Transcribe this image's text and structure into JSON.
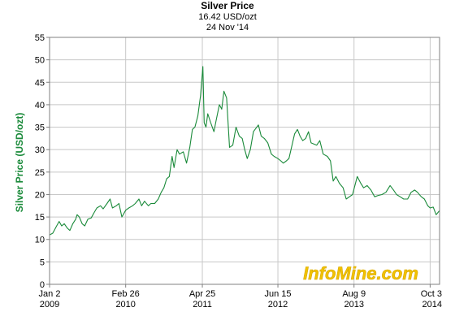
{
  "chart_data": {
    "type": "line",
    "title": "Silver Price",
    "subtitle": "16.42 USD/ozt",
    "date_label": "24 Nov '14",
    "xlabel": "",
    "ylabel": "Silver Price (USD/ozt)",
    "ylim": [
      0,
      55
    ],
    "yticks": [
      0,
      5,
      10,
      15,
      20,
      25,
      30,
      35,
      40,
      45,
      50,
      55
    ],
    "xlim": [
      "2009-01-02",
      "2014-11-24"
    ],
    "xticks": [
      {
        "date": "2009-01-02",
        "line1": "Jan 2",
        "line2": "2009"
      },
      {
        "date": "2010-02-26",
        "line1": "Feb 26",
        "line2": "2010"
      },
      {
        "date": "2011-04-25",
        "line1": "Apr 25",
        "line2": "2011"
      },
      {
        "date": "2012-06-15",
        "line1": "Jun 15",
        "line2": "2012"
      },
      {
        "date": "2013-08-09",
        "line1": "Aug 9",
        "line2": "2013"
      },
      {
        "date": "2014-10-03",
        "line1": "Oct 3",
        "line2": "2014"
      }
    ],
    "grid": true,
    "line_color": "#1a8a3a",
    "watermark": "InfoMine.com",
    "series": [
      {
        "name": "",
        "points": [
          [
            "2009-01-02",
            11.0
          ],
          [
            "2009-01-20",
            11.4
          ],
          [
            "2009-02-10",
            13.0
          ],
          [
            "2009-02-24",
            14.0
          ],
          [
            "2009-03-10",
            13.0
          ],
          [
            "2009-03-24",
            13.5
          ],
          [
            "2009-04-10",
            12.5
          ],
          [
            "2009-04-24",
            12.0
          ],
          [
            "2009-05-10",
            13.5
          ],
          [
            "2009-05-26",
            14.5
          ],
          [
            "2009-06-03",
            15.5
          ],
          [
            "2009-06-15",
            15.0
          ],
          [
            "2009-07-01",
            13.5
          ],
          [
            "2009-07-15",
            13.0
          ],
          [
            "2009-08-01",
            14.5
          ],
          [
            "2009-08-20",
            14.8
          ],
          [
            "2009-09-05",
            16.0
          ],
          [
            "2009-09-20",
            17.0
          ],
          [
            "2009-10-10",
            17.5
          ],
          [
            "2009-10-25",
            16.8
          ],
          [
            "2009-11-15",
            18.0
          ],
          [
            "2009-12-02",
            19.0
          ],
          [
            "2009-12-15",
            17.0
          ],
          [
            "2010-01-05",
            17.5
          ],
          [
            "2010-01-20",
            18.0
          ],
          [
            "2010-02-05",
            15.0
          ],
          [
            "2010-02-26",
            16.5
          ],
          [
            "2010-03-15",
            17.0
          ],
          [
            "2010-04-05",
            17.5
          ],
          [
            "2010-04-20",
            18.0
          ],
          [
            "2010-05-10",
            19.0
          ],
          [
            "2010-05-25",
            17.5
          ],
          [
            "2010-06-10",
            18.5
          ],
          [
            "2010-07-01",
            17.5
          ],
          [
            "2010-07-15",
            18.0
          ],
          [
            "2010-08-05",
            18.0
          ],
          [
            "2010-08-25",
            19.0
          ],
          [
            "2010-09-10",
            20.5
          ],
          [
            "2010-09-25",
            21.5
          ],
          [
            "2010-10-10",
            23.5
          ],
          [
            "2010-10-25",
            24.0
          ],
          [
            "2010-11-09",
            28.5
          ],
          [
            "2010-11-20",
            26.0
          ],
          [
            "2010-12-07",
            30.0
          ],
          [
            "2010-12-20",
            29.0
          ],
          [
            "2011-01-10",
            29.5
          ],
          [
            "2011-01-28",
            27.0
          ],
          [
            "2011-02-15",
            30.5
          ],
          [
            "2011-03-01",
            34.5
          ],
          [
            "2011-03-15",
            35.0
          ],
          [
            "2011-03-31",
            37.5
          ],
          [
            "2011-04-15",
            42.0
          ],
          [
            "2011-04-28",
            48.5
          ],
          [
            "2011-05-05",
            36.0
          ],
          [
            "2011-05-15",
            35.0
          ],
          [
            "2011-05-25",
            38.0
          ],
          [
            "2011-06-10",
            36.0
          ],
          [
            "2011-06-28",
            34.0
          ],
          [
            "2011-07-10",
            36.5
          ],
          [
            "2011-07-28",
            40.0
          ],
          [
            "2011-08-10",
            39.0
          ],
          [
            "2011-08-22",
            43.0
          ],
          [
            "2011-09-06",
            41.5
          ],
          [
            "2011-09-22",
            30.5
          ],
          [
            "2011-10-10",
            31.0
          ],
          [
            "2011-10-28",
            35.0
          ],
          [
            "2011-11-15",
            33.0
          ],
          [
            "2011-12-01",
            32.5
          ],
          [
            "2011-12-15",
            30.0
          ],
          [
            "2011-12-29",
            28.0
          ],
          [
            "2012-01-15",
            30.0
          ],
          [
            "2012-02-01",
            34.0
          ],
          [
            "2012-02-28",
            35.5
          ],
          [
            "2012-03-15",
            33.0
          ],
          [
            "2012-04-01",
            32.5
          ],
          [
            "2012-04-20",
            31.5
          ],
          [
            "2012-05-10",
            29.0
          ],
          [
            "2012-05-25",
            28.5
          ],
          [
            "2012-06-15",
            28.0
          ],
          [
            "2012-07-01",
            27.5
          ],
          [
            "2012-07-15",
            27.0
          ],
          [
            "2012-08-01",
            27.5
          ],
          [
            "2012-08-15",
            28.0
          ],
          [
            "2012-09-01",
            31.0
          ],
          [
            "2012-09-15",
            33.5
          ],
          [
            "2012-10-01",
            34.5
          ],
          [
            "2012-10-15",
            33.0
          ],
          [
            "2012-10-30",
            32.0
          ],
          [
            "2012-11-15",
            32.5
          ],
          [
            "2012-12-01",
            34.0
          ],
          [
            "2012-12-15",
            31.5
          ],
          [
            "2013-01-15",
            31.0
          ],
          [
            "2013-02-01",
            32.0
          ],
          [
            "2013-02-20",
            29.0
          ],
          [
            "2013-03-15",
            28.5
          ],
          [
            "2013-04-01",
            27.5
          ],
          [
            "2013-04-16",
            23.0
          ],
          [
            "2013-05-01",
            24.0
          ],
          [
            "2013-05-20",
            22.5
          ],
          [
            "2013-06-10",
            21.5
          ],
          [
            "2013-06-27",
            19.0
          ],
          [
            "2013-07-15",
            19.5
          ],
          [
            "2013-08-01",
            20.0
          ],
          [
            "2013-08-27",
            24.0
          ],
          [
            "2013-09-15",
            22.5
          ],
          [
            "2013-10-01",
            21.5
          ],
          [
            "2013-10-20",
            22.0
          ],
          [
            "2013-11-10",
            21.0
          ],
          [
            "2013-12-01",
            19.5
          ],
          [
            "2013-12-20",
            19.8
          ],
          [
            "2014-01-10",
            20.0
          ],
          [
            "2014-02-01",
            20.5
          ],
          [
            "2014-02-24",
            22.0
          ],
          [
            "2014-03-15",
            21.0
          ],
          [
            "2014-04-01",
            20.0
          ],
          [
            "2014-04-20",
            19.5
          ],
          [
            "2014-05-10",
            19.0
          ],
          [
            "2014-06-01",
            19.0
          ],
          [
            "2014-06-20",
            20.5
          ],
          [
            "2014-07-10",
            21.0
          ],
          [
            "2014-07-25",
            20.5
          ],
          [
            "2014-08-15",
            19.5
          ],
          [
            "2014-09-01",
            19.0
          ],
          [
            "2014-09-20",
            17.5
          ],
          [
            "2014-10-03",
            17.0
          ],
          [
            "2014-10-20",
            17.2
          ],
          [
            "2014-11-05",
            15.5
          ],
          [
            "2014-11-15",
            16.0
          ],
          [
            "2014-11-24",
            16.42
          ]
        ]
      }
    ]
  }
}
